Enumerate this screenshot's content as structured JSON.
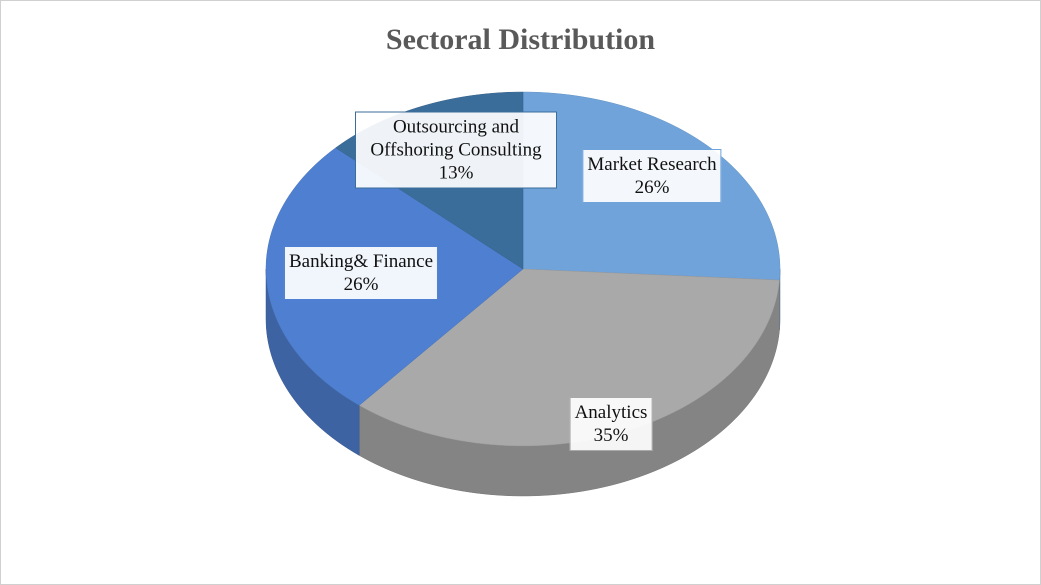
{
  "chart_data": {
    "type": "pie",
    "title": "Sectoral Distribution",
    "categories": [
      "Market Research",
      "Analytics",
      "Banking& Finance",
      "Outsourcing and Offshoring Consulting"
    ],
    "values": [
      26,
      35,
      26,
      13
    ],
    "value_labels": [
      "26%",
      "35%",
      "26%",
      "13%"
    ],
    "colors": [
      "#6fa3da",
      "#a9a9a9",
      "#4f7fd0",
      "#3b6d9a"
    ]
  }
}
